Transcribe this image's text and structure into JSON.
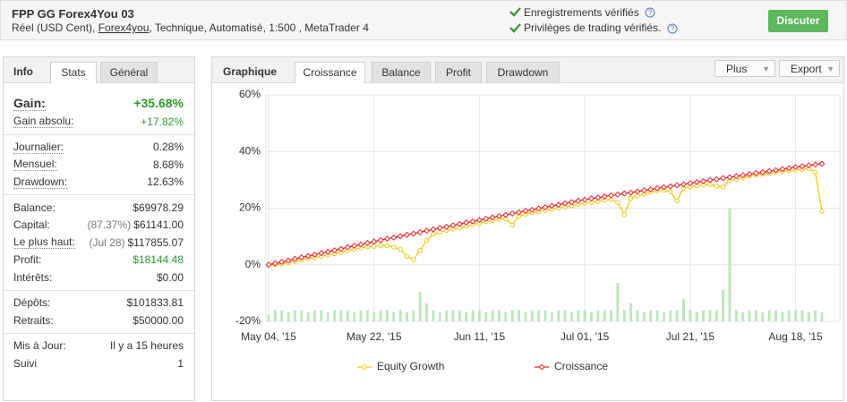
{
  "header": {
    "title": "FPP GG Forex4You 03",
    "subtitle_prefix": "Réel (USD Cent), ",
    "subtitle_link": "Forex4you",
    "subtitle_suffix": ", Technique, Automatisé, 1:500 , MetaTrader 4",
    "verified": [
      "Enregistrements vérifiés",
      "Privilèges de trading vérifiés."
    ],
    "button": "Discuter"
  },
  "left_panel": {
    "label": "Info",
    "tabs": [
      "Stats",
      "Général"
    ],
    "groups": [
      [
        {
          "label": "Gain:",
          "value": "+35.68%"
        },
        {
          "label": "Gain absolu:",
          "value": "+17.82%"
        }
      ],
      [
        {
          "label": "Journalier:",
          "value": "0.28%"
        },
        {
          "label": "Mensuel:",
          "value": "8.68%"
        },
        {
          "label": "Drawdown:",
          "value": "12.63%"
        }
      ],
      [
        {
          "label": "Balance:",
          "value": "$69978.29"
        },
        {
          "label": "Capital:",
          "note": "(87.37%)",
          "value": "$61141.00"
        },
        {
          "label": "Le plus haut:",
          "note": "(Jul 28)",
          "value": "$117855.07"
        },
        {
          "label": "Profit:",
          "value": "$18144.48"
        },
        {
          "label": "Intérêts:",
          "value": "$0.00"
        }
      ],
      [
        {
          "label": "Dépôts:",
          "value": "$101833.81"
        },
        {
          "label": "Retraits:",
          "value": "$50000.00"
        }
      ],
      [
        {
          "label": "Mis à Jour:",
          "value": "Il y a 15 heures"
        },
        {
          "label": "Suivi",
          "value": "1"
        }
      ]
    ]
  },
  "right_panel": {
    "label": "Graphique",
    "tabs": [
      "Croissance",
      "Balance",
      "Profit",
      "Drawdown"
    ],
    "buttons": [
      "Plus",
      "Export"
    ]
  },
  "chart_data": {
    "type": "line",
    "categories": [
      "May 04, '15",
      null,
      null,
      null,
      null,
      null,
      null,
      null,
      null,
      null,
      null,
      null,
      null,
      null,
      null,
      null,
      "May 22, '15",
      null,
      null,
      null,
      null,
      null,
      null,
      null,
      null,
      null,
      null,
      null,
      null,
      null,
      null,
      null,
      "Jun 11, '15",
      null,
      null,
      null,
      null,
      null,
      null,
      null,
      null,
      null,
      null,
      null,
      null,
      null,
      null,
      null,
      "Jul 01, '15",
      null,
      null,
      null,
      null,
      null,
      null,
      null,
      null,
      null,
      null,
      null,
      null,
      null,
      null,
      null,
      "Jul 21, '15",
      null,
      null,
      null,
      null,
      null,
      null,
      null,
      null,
      null,
      null,
      null,
      null,
      null,
      null,
      null,
      "Aug 18, '15",
      null,
      null,
      null,
      null
    ],
    "series": [
      {
        "name": "Equity Growth",
        "color": "#f2c811",
        "marker": "circle",
        "values": [
          0,
          0.1,
          0.3,
          0.7,
          1.2,
          1.7,
          2.2,
          2.6,
          3.0,
          3.4,
          3.9,
          4.4,
          5.0,
          5.5,
          6.0,
          6.3,
          6.5,
          6.8,
          6.7,
          6.2,
          5.5,
          3.0,
          1.8,
          5.0,
          8.6,
          10.8,
          11.5,
          12.1,
          12.6,
          13.1,
          13.6,
          14.2,
          14.7,
          15.2,
          15.6,
          16.0,
          16.3,
          14.0,
          17.2,
          17.9,
          18.4,
          18.8,
          19.2,
          19.6,
          20.0,
          20.4,
          20.8,
          21.3,
          21.7,
          22.0,
          22.4,
          22.8,
          23.1,
          22.0,
          17.8,
          23.5,
          24.3,
          25.0,
          25.6,
          26.1,
          26.4,
          25.8,
          22.6,
          27.0,
          27.5,
          27.9,
          28.2,
          28.4,
          27.8,
          27.5,
          29.8,
          30.2,
          30.8,
          31.3,
          31.8,
          32.0,
          32.3,
          32.7,
          33.0,
          33.3,
          33.5,
          33.7,
          33.9,
          32.8,
          18.9
        ]
      },
      {
        "name": "Croissance",
        "color": "#e8262b",
        "marker": "diamond",
        "values": [
          0,
          0.5,
          1.0,
          1.5,
          2.1,
          2.6,
          3.1,
          3.6,
          4.1,
          4.6,
          5.1,
          5.6,
          6.2,
          6.7,
          7.2,
          7.7,
          8.2,
          8.7,
          9.2,
          9.6,
          10.1,
          10.6,
          11.0,
          11.5,
          12.0,
          12.5,
          13.0,
          13.4,
          13.9,
          14.4,
          14.9,
          15.3,
          15.8,
          16.3,
          16.7,
          17.2,
          17.6,
          18.1,
          18.5,
          19.0,
          19.4,
          19.9,
          20.3,
          20.8,
          21.2,
          21.7,
          22.1,
          22.6,
          23.0,
          23.4,
          23.7,
          24.1,
          24.5,
          24.8,
          25.2,
          25.5,
          25.9,
          26.3,
          26.6,
          27.0,
          27.4,
          27.7,
          28.1,
          28.4,
          28.8,
          29.2,
          29.5,
          29.9,
          30.2,
          30.6,
          30.9,
          31.3,
          31.6,
          32.0,
          32.4,
          32.7,
          33.1,
          33.4,
          33.8,
          34.1,
          34.5,
          34.8,
          35.1,
          35.4,
          35.68
        ]
      },
      {
        "type": "bar",
        "axis": "y2",
        "color": "#bfe6bf",
        "values": [
          3,
          5,
          5,
          4,
          5,
          5,
          4,
          5,
          5,
          4,
          5,
          5,
          5,
          4,
          5,
          5,
          4,
          5,
          5,
          4,
          5,
          4,
          5,
          13,
          8,
          5,
          4,
          5,
          5,
          5,
          4,
          5,
          5,
          4,
          5,
          5,
          4,
          5,
          5,
          4,
          5,
          5,
          5,
          4,
          5,
          5,
          4,
          5,
          5,
          4,
          5,
          5,
          5,
          17,
          5,
          8,
          5,
          4,
          5,
          5,
          4,
          5,
          5,
          10,
          5,
          4,
          5,
          5,
          5,
          14,
          50,
          5,
          4,
          5,
          5,
          4,
          5,
          5,
          4,
          5,
          5,
          5,
          4,
          5,
          4
        ]
      }
    ],
    "ylim": [
      -20,
      60
    ],
    "yticks": [
      {
        "value": -20,
        "label": "-20%"
      },
      {
        "value": 0,
        "label": "0%"
      },
      {
        "value": 20,
        "label": "20%"
      },
      {
        "value": 40,
        "label": "40%"
      },
      {
        "value": 60,
        "label": "60%"
      }
    ],
    "y2lim": [
      0,
      100
    ],
    "grid": true
  }
}
